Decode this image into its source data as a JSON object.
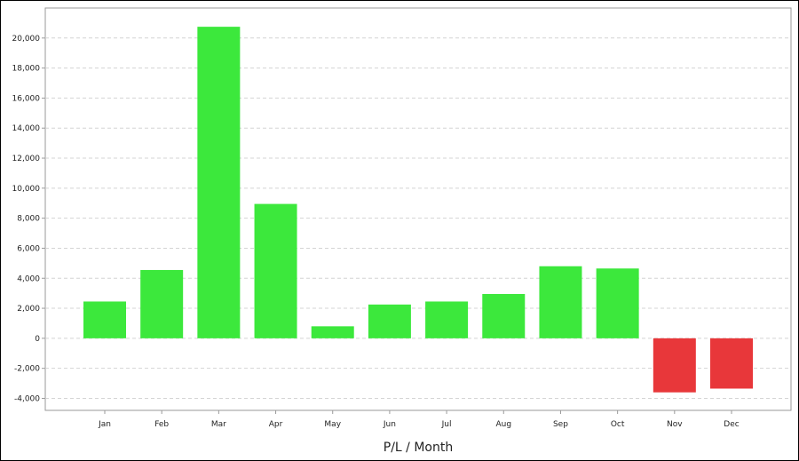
{
  "chart_data": {
    "type": "bar",
    "title": "",
    "xlabel": "P/L / Month",
    "ylabel": "",
    "categories": [
      "Jan",
      "Feb",
      "Mar",
      "Apr",
      "May",
      "Jun",
      "Jul",
      "Aug",
      "Sep",
      "Oct",
      "Nov",
      "Dec"
    ],
    "values": [
      2450,
      4550,
      20750,
      8950,
      800,
      2250,
      2450,
      2950,
      4800,
      4650,
      -3600,
      -3350
    ],
    "ylim": [
      -4800,
      22000
    ],
    "yticks": [
      -4000,
      -2000,
      0,
      2000,
      4000,
      6000,
      8000,
      10000,
      12000,
      14000,
      16000,
      18000,
      20000
    ],
    "ytick_labels": [
      "-4,000",
      "-2,000",
      "0",
      "2,000",
      "4,000",
      "6,000",
      "8,000",
      "10,000",
      "12,000",
      "14,000",
      "16,000",
      "18,000",
      "20,000"
    ],
    "grid": true,
    "colors": {
      "positive": "#3ce83c",
      "negative": "#e8373a",
      "grid": "#d4d4d4",
      "axis": "#9a9a9a"
    }
  }
}
